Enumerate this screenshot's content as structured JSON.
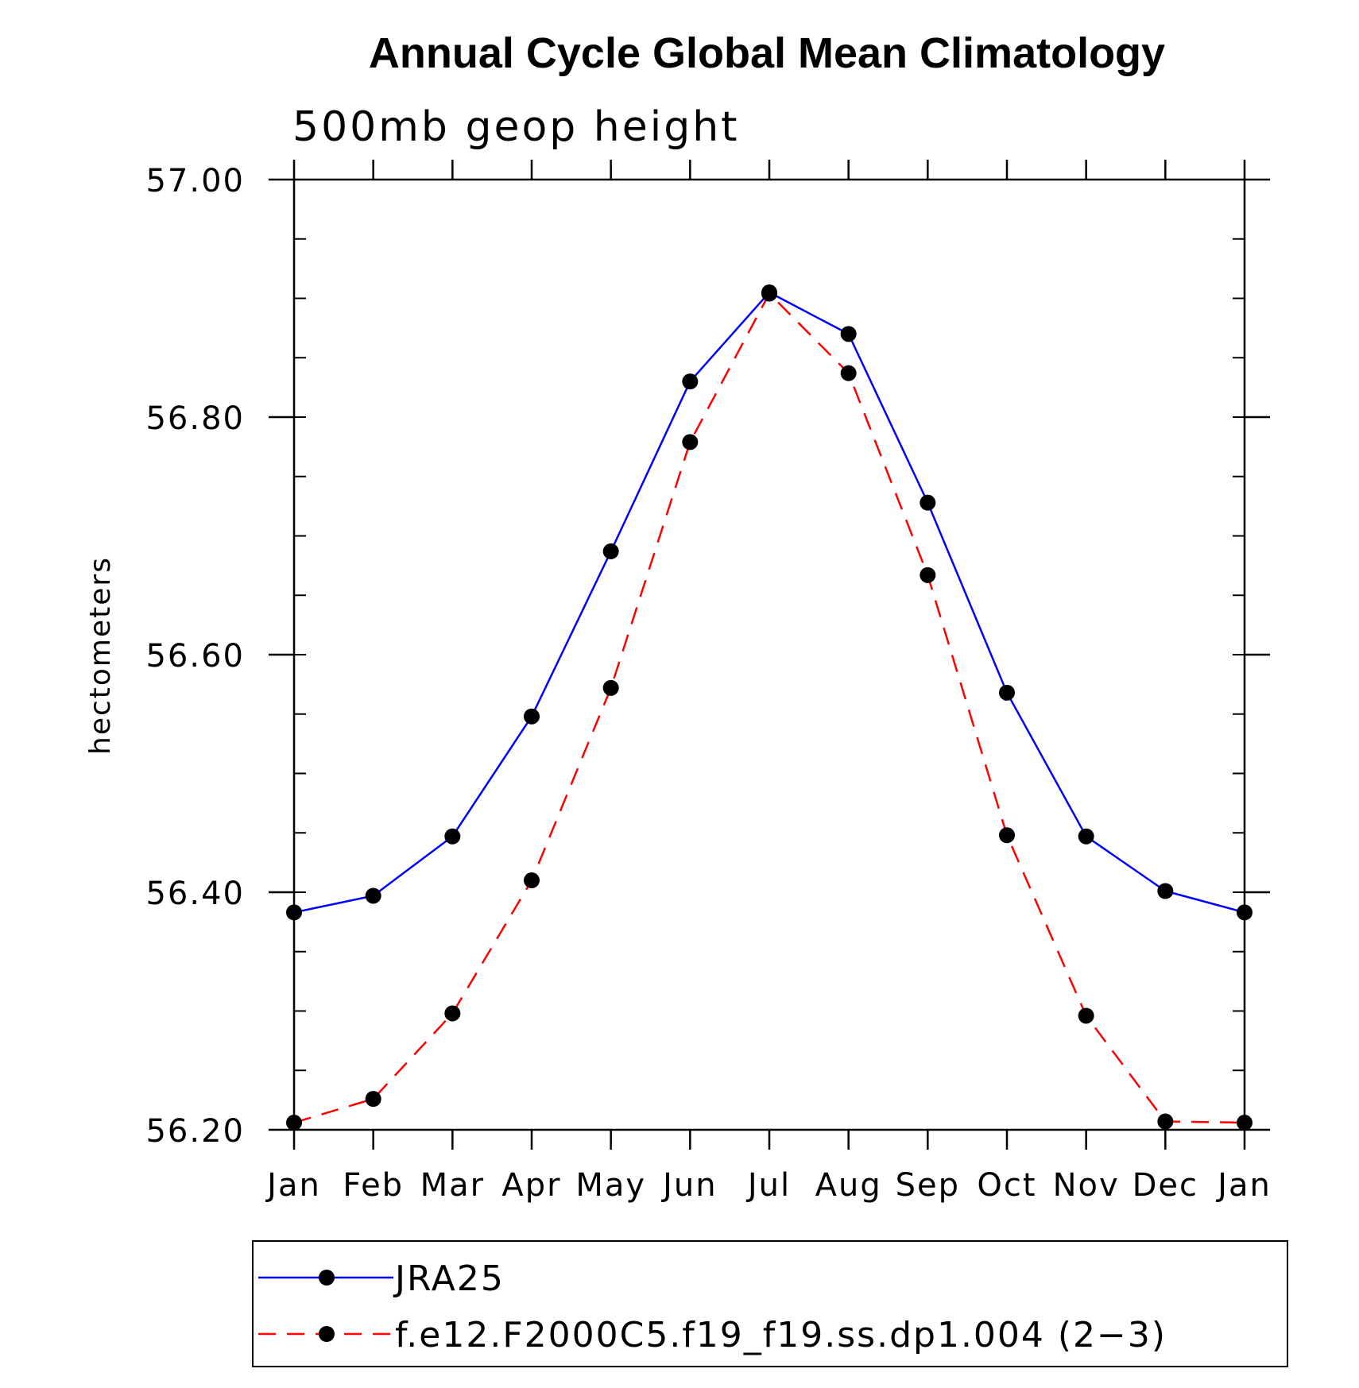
{
  "chart_data": {
    "type": "line",
    "title": "Annual Cycle Global Mean Climatology",
    "subtitle": "500mb geop height",
    "xlabel": "",
    "ylabel": "hectometers",
    "categories": [
      "Jan",
      "Feb",
      "Mar",
      "Apr",
      "May",
      "Jun",
      "Jul",
      "Aug",
      "Sep",
      "Oct",
      "Nov",
      "Dec",
      "Jan"
    ],
    "ylim": [
      56.2,
      57.0
    ],
    "yticks": [
      56.2,
      56.4,
      56.6,
      56.8,
      57.0
    ],
    "ytick_labels": [
      "56.20",
      "56.40",
      "56.60",
      "56.80",
      "57.00"
    ],
    "yminor_step": 0.05,
    "series": [
      {
        "name": "JRA25",
        "color": "#0000ff",
        "dash": "solid",
        "values": [
          56.383,
          56.397,
          56.447,
          56.548,
          56.687,
          56.83,
          56.905,
          56.87,
          56.728,
          56.568,
          56.447,
          56.401,
          56.383
        ]
      },
      {
        "name": "f.e12.F2000C5.f19_f19.ss.dp1.004 (2−3)",
        "color": "#ff0000",
        "dash": "dashed",
        "values": [
          56.206,
          56.226,
          56.298,
          56.41,
          56.572,
          56.779,
          56.904,
          56.837,
          56.667,
          56.448,
          56.296,
          56.207,
          56.206
        ]
      }
    ],
    "legend_position": "bottom"
  }
}
